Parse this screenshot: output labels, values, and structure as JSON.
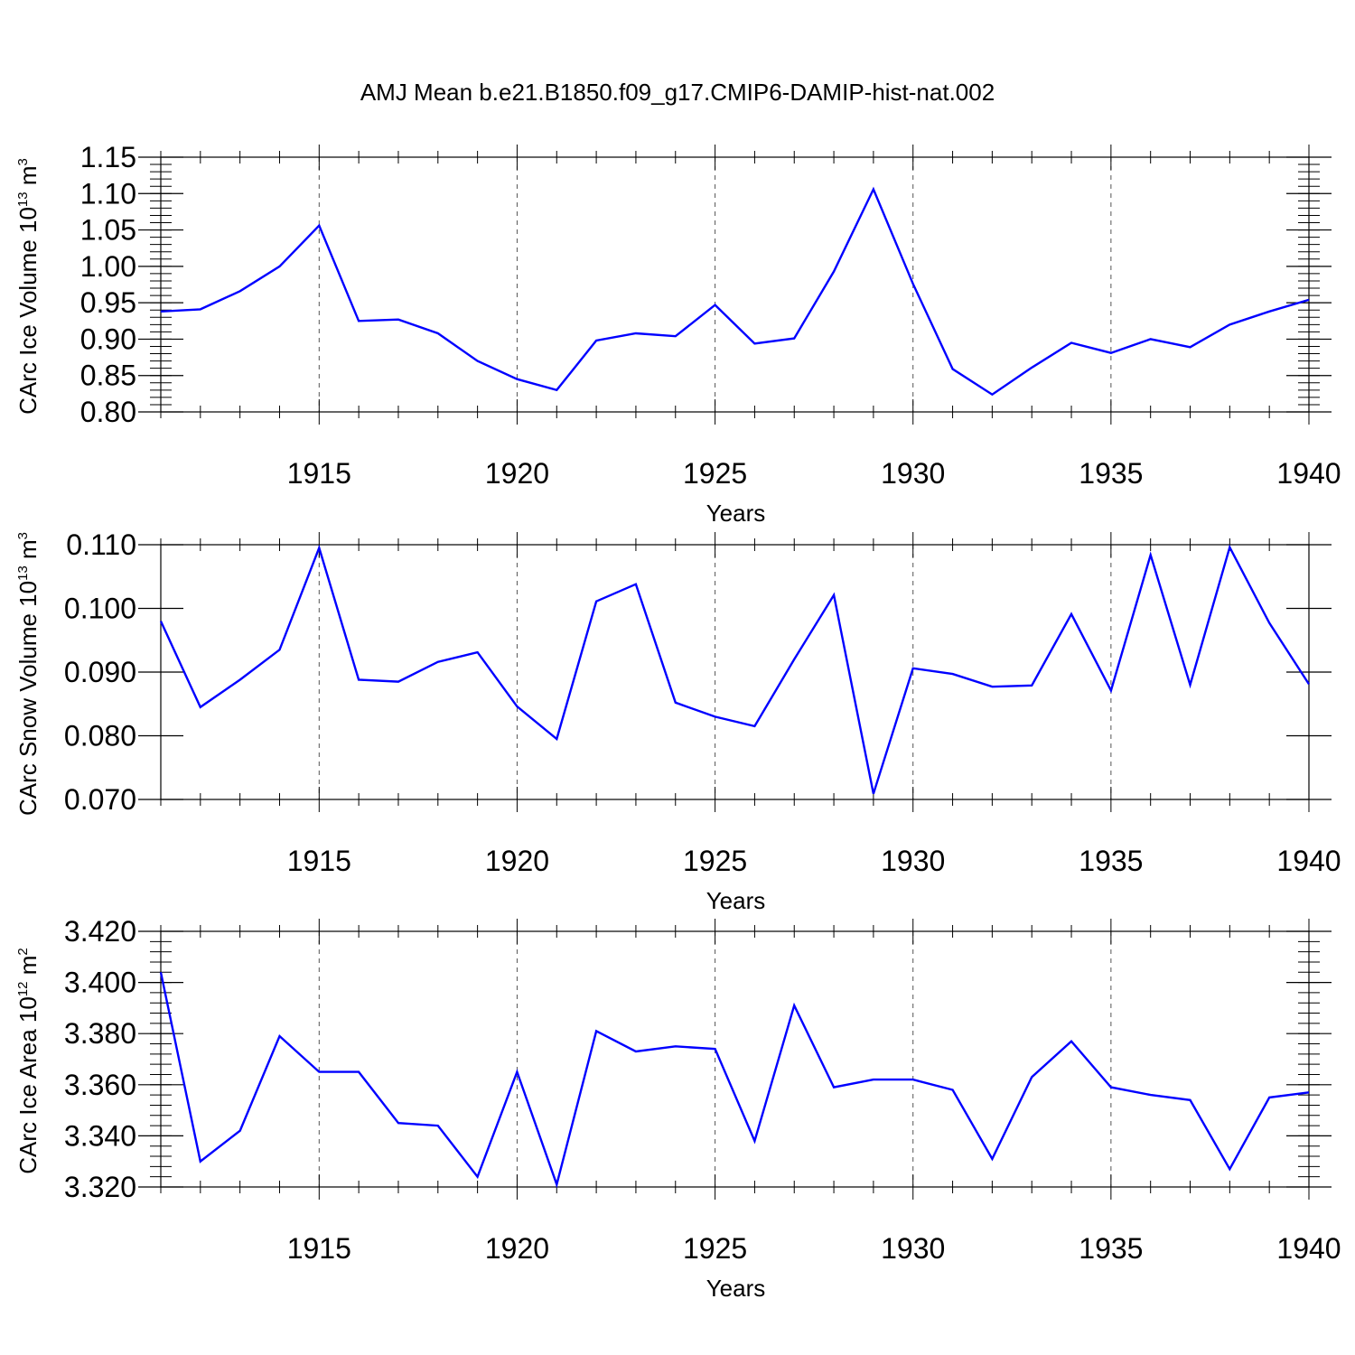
{
  "figure_title": "AMJ Mean b.e21.B1850.f09_g17.CMIP6-DAMIP-hist-nat.002",
  "colors": {
    "line": "#0000ff",
    "axis": "#000000",
    "grid": "#555555"
  },
  "chart_data": [
    {
      "type": "line",
      "title": "AMJ Mean b.e21.B1850.f09_g17.CMIP6-DAMIP-hist-nat.002",
      "xlabel": "Years",
      "ylabel": {
        "prefix": "CArc Ice Volume 10",
        "exp": "13",
        "unit": " m",
        "unit_exp": "3"
      },
      "xlim": [
        1911,
        1940
      ],
      "ylim": [
        0.8,
        1.15
      ],
      "xticks": [
        1915,
        1920,
        1925,
        1930,
        1935,
        1940
      ],
      "yticks": [
        0.8,
        0.85,
        0.9,
        0.95,
        1.0,
        1.05,
        1.1,
        1.15
      ],
      "ytick_labels": [
        "0.80",
        "0.85",
        "0.90",
        "0.95",
        "1.00",
        "1.05",
        "1.10",
        "1.15"
      ],
      "yminor_step": 0.01,
      "vertical_grid": true,
      "x": [
        1911,
        1912,
        1913,
        1914,
        1915,
        1916,
        1917,
        1918,
        1919,
        1920,
        1921,
        1922,
        1923,
        1924,
        1925,
        1926,
        1927,
        1928,
        1929,
        1930,
        1931,
        1932,
        1933,
        1934,
        1935,
        1936,
        1937,
        1938,
        1939,
        1940
      ],
      "series": [
        {
          "name": "CArc Ice Volume",
          "values": [
            0.938,
            0.941,
            0.966,
            1.0,
            1.056,
            0.925,
            0.927,
            0.908,
            0.87,
            0.845,
            0.83,
            0.898,
            0.908,
            0.904,
            0.947,
            0.894,
            0.901,
            0.993,
            1.106,
            0.976,
            0.859,
            0.824,
            0.861,
            0.895,
            0.881,
            0.9,
            0.889,
            0.92,
            0.938,
            0.954
          ]
        }
      ]
    },
    {
      "type": "line",
      "xlabel": "Years",
      "ylabel": {
        "prefix": "CArc Snow Volume 10",
        "exp": "13",
        "unit": " m",
        "unit_exp": "3"
      },
      "xlim": [
        1911,
        1940
      ],
      "ylim": [
        0.07,
        0.11
      ],
      "xticks": [
        1915,
        1920,
        1925,
        1930,
        1935,
        1940
      ],
      "yticks": [
        0.07,
        0.08,
        0.09,
        0.1,
        0.11
      ],
      "ytick_labels": [
        "0.070",
        "0.080",
        "0.090",
        "0.100",
        "0.110"
      ],
      "yminor_step": null,
      "vertical_grid": true,
      "x": [
        1911,
        1912,
        1913,
        1914,
        1915,
        1916,
        1917,
        1918,
        1919,
        1920,
        1921,
        1922,
        1923,
        1924,
        1925,
        1926,
        1927,
        1928,
        1929,
        1930,
        1931,
        1932,
        1933,
        1934,
        1935,
        1936,
        1937,
        1938,
        1939,
        1940
      ],
      "series": [
        {
          "name": "CArc Snow Volume",
          "values": [
            0.098,
            0.0845,
            0.0888,
            0.0935,
            0.1095,
            0.0888,
            0.0885,
            0.0916,
            0.0931,
            0.0846,
            0.0795,
            0.1011,
            0.1038,
            0.0852,
            0.083,
            0.0815,
            0.092,
            0.1021,
            0.0709,
            0.0906,
            0.0897,
            0.0877,
            0.0879,
            0.0991,
            0.0871,
            0.1084,
            0.088,
            0.1096,
            0.0977,
            0.0881
          ]
        }
      ]
    },
    {
      "type": "line",
      "xlabel": "Years",
      "ylabel": {
        "prefix": "CArc Ice Area 10",
        "exp": "12",
        "unit": " m",
        "unit_exp": "2"
      },
      "xlim": [
        1911,
        1940
      ],
      "ylim": [
        3.32,
        3.42
      ],
      "xticks": [
        1915,
        1920,
        1925,
        1930,
        1935,
        1940
      ],
      "yticks": [
        3.32,
        3.34,
        3.36,
        3.38,
        3.4,
        3.42
      ],
      "ytick_labels": [
        "3.320",
        "3.340",
        "3.360",
        "3.380",
        "3.400",
        "3.420"
      ],
      "yminor_step": 0.004,
      "vertical_grid": true,
      "x": [
        1911,
        1912,
        1913,
        1914,
        1915,
        1916,
        1917,
        1918,
        1919,
        1920,
        1921,
        1922,
        1923,
        1924,
        1925,
        1926,
        1927,
        1928,
        1929,
        1930,
        1931,
        1932,
        1933,
        1934,
        1935,
        1936,
        1937,
        1938,
        1939,
        1940
      ],
      "series": [
        {
          "name": "CArc Ice Area",
          "values": [
            3.404,
            3.33,
            3.342,
            3.379,
            3.365,
            3.365,
            3.345,
            3.344,
            3.324,
            3.365,
            3.321,
            3.381,
            3.373,
            3.375,
            3.374,
            3.338,
            3.391,
            3.359,
            3.362,
            3.362,
            3.358,
            3.331,
            3.363,
            3.377,
            3.359,
            3.356,
            3.354,
            3.327,
            3.355,
            3.357
          ]
        }
      ]
    }
  ]
}
